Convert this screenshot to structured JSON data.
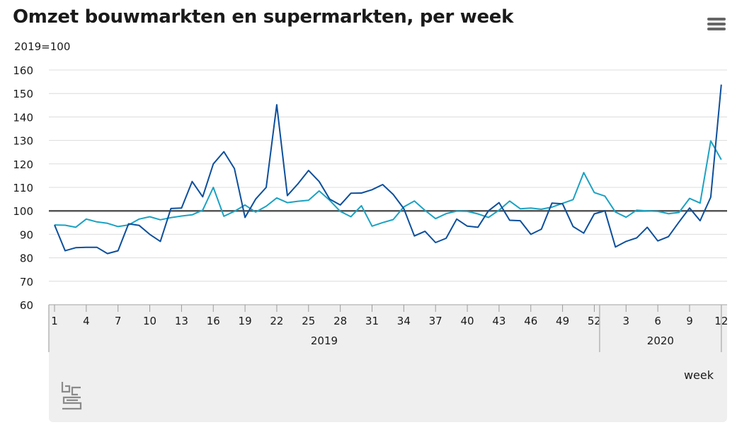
{
  "title": "Omzet bouwmarkten en supermarkten, per week",
  "unit_label": "2019=100",
  "menu_icon": "hamburger-menu-icon",
  "logo_icon": "cbs-logo-icon",
  "colors": {
    "series_dark": "#0c4f9c",
    "series_light": "#1ba2c2",
    "reference_line": "#555555",
    "grid": "#dcdcdc",
    "axis_panel": "#efefef"
  },
  "chart_data": {
    "type": "line",
    "xlabel": "week",
    "ylabel": "2019=100",
    "ylim": [
      60,
      160
    ],
    "yticks": [
      60,
      70,
      80,
      90,
      100,
      110,
      120,
      130,
      140,
      150,
      160
    ],
    "reference_value": 100,
    "grid": true,
    "legend": "none",
    "x_ticks": [
      "1",
      "4",
      "7",
      "10",
      "13",
      "16",
      "19",
      "22",
      "25",
      "28",
      "31",
      "34",
      "37",
      "40",
      "43",
      "46",
      "49",
      "52",
      "3",
      "6",
      "9",
      "12"
    ],
    "year_groups": [
      {
        "label": "2019",
        "weeks": 52
      },
      {
        "label": "2020",
        "weeks": 12
      }
    ],
    "series": [
      {
        "values": [
          94,
          83,
          84.3,
          84.5,
          84.5,
          81.8,
          83,
          94.5,
          93.8,
          90,
          87,
          101,
          101.2,
          112.5,
          106,
          120,
          125.2,
          118,
          97.2,
          105,
          110,
          145.2,
          106.5,
          111.5,
          117.2,
          112.5,
          105,
          102.5,
          107.5,
          107.6,
          109,
          111.2,
          107,
          101,
          89.3,
          91.3,
          86.5,
          88.3,
          96.5,
          93.5,
          93,
          100,
          103.5,
          96,
          95.8,
          90,
          92.2,
          103.3,
          103,
          93.3,
          90.5,
          98.7,
          100,
          84.6,
          87,
          88.5,
          93,
          87.2,
          89,
          95.2,
          101.2,
          95.8,
          105.8,
          153.8
        ]
      },
      {
        "values": [
          94,
          93.9,
          93,
          96.5,
          95.3,
          94.7,
          93.3,
          94,
          96.5,
          97.5,
          96.2,
          97.1,
          97.8,
          98.3,
          100.3,
          110,
          97.7,
          99.8,
          102.5,
          99.5,
          102,
          105.5,
          103.5,
          104.1,
          104.5,
          108.5,
          104.5,
          99.8,
          97.5,
          102.2,
          93.5,
          95,
          96.3,
          101.7,
          104.2,
          100.2,
          96.7,
          98.8,
          99.9,
          99.8,
          98.7,
          97.2,
          100.3,
          104.2,
          100.9,
          101.2,
          100.7,
          101.6,
          103.2,
          104.8,
          116.3,
          107.8,
          106.3,
          99.5,
          97.3,
          100.3,
          100,
          99.8,
          98.8,
          99.3,
          105.3,
          103.3,
          129.8,
          121.8
        ]
      }
    ]
  },
  "x_axis_name": "week"
}
